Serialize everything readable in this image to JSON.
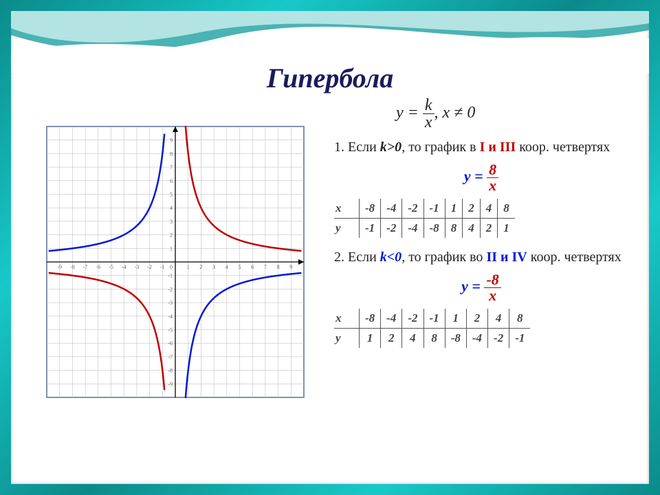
{
  "title": "Гипербола",
  "formula_main": {
    "lhs": "y",
    "num": "k",
    "den": "x",
    "cond": "x ≠ 0"
  },
  "rule1": {
    "index": "1.",
    "prefix": "Если ",
    "k": "k>0",
    "middle": ", то график в ",
    "quads": "I и III",
    "suffix": " коор. четвертях"
  },
  "formula1": {
    "lhs": "y =",
    "num": "8",
    "den": "x"
  },
  "table1": {
    "x_label": "x",
    "y_label": "y",
    "x": [
      "-8",
      "-4",
      "-2",
      "-1",
      "1",
      "2",
      "4",
      "8"
    ],
    "y": [
      "-1",
      "-2",
      "-4",
      "-8",
      "8",
      "4",
      "2",
      "1"
    ]
  },
  "rule2": {
    "index": "2.",
    "prefix": "Если ",
    "k": "k<0",
    "middle": ", то график во ",
    "quads": "II и IV",
    "suffix": " коор. четвертях"
  },
  "formula2": {
    "lhs": "y =",
    "num": "-8",
    "den": "x"
  },
  "table2": {
    "x_label": "x",
    "y_label": "y",
    "x": [
      "-8",
      "-4",
      "-2",
      "-1",
      "1",
      "2",
      "4",
      "8"
    ],
    "y": [
      "1",
      "2",
      "4",
      "8",
      "-8",
      "-4",
      "-2",
      "-1"
    ]
  },
  "chart": {
    "type": "line",
    "xlim": [
      -10,
      10
    ],
    "ylim": [
      -10,
      10
    ],
    "xtick_step": 1,
    "ytick_step": 1,
    "grid_color": "#b5b5b5",
    "axis_color": "#000000",
    "background_color": "#ffffff",
    "border_color": "#2b4b8a",
    "line_width": 2.5,
    "series": [
      {
        "name": "y=8/x (I,III)",
        "color": "#c00000",
        "branch_pos_x": [
          0.82,
          1,
          1.5,
          2,
          3,
          4,
          6,
          8,
          9.5
        ],
        "branch_neg_x": [
          -0.82,
          -1,
          -1.5,
          -2,
          -3,
          -4,
          -6,
          -8,
          -9.5
        ]
      },
      {
        "name": "y=-8/x (II,IV)",
        "color": "#0018d8",
        "branch_pos_x": [
          0.82,
          1,
          1.5,
          2,
          3,
          4,
          6,
          8,
          9.5
        ],
        "branch_neg_x": [
          -0.82,
          -1,
          -1.5,
          -2,
          -3,
          -4,
          -6,
          -8,
          -9.5
        ]
      }
    ],
    "tick_fontsize": 8,
    "tick_color": "#666666"
  },
  "wave": {
    "top_color1": "#2aa6a6",
    "top_color2": "#bfe8e8",
    "top_color3": "#ffffff"
  }
}
